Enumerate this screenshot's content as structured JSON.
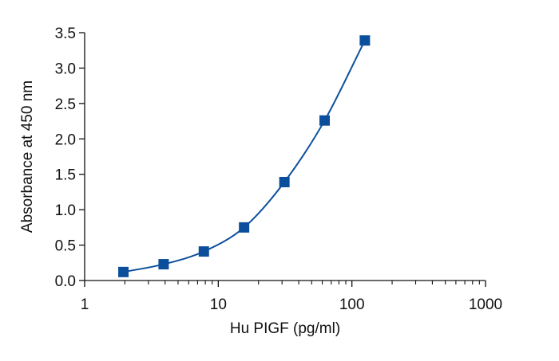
{
  "chart_data": {
    "type": "scatter",
    "xlabel": "Hu PIGF (pg/ml)",
    "ylabel": "Absorbance at 450 nm",
    "x_scale": "log",
    "xlim": [
      1,
      1000
    ],
    "ylim": [
      0,
      3.5
    ],
    "x_ticks": [
      1,
      10,
      100,
      1000
    ],
    "x_tick_labels": [
      "1",
      "10",
      "100",
      "1000"
    ],
    "y_ticks": [
      0,
      0.5,
      1.0,
      1.5,
      2.0,
      2.5,
      3.0,
      3.5
    ],
    "y_tick_labels": [
      "0.0",
      "0.5",
      "1.0",
      "1.5",
      "2.0",
      "2.5",
      "3.0",
      "3.5"
    ],
    "grid": false,
    "legend": "none",
    "fit_curve": true,
    "series": [
      {
        "marker": "square",
        "color": "#0B4F9C",
        "x": [
          1.95,
          3.9,
          7.8,
          15.6,
          31.25,
          62.5,
          125
        ],
        "y": [
          0.12,
          0.23,
          0.41,
          0.75,
          1.39,
          2.26,
          3.39
        ]
      }
    ]
  }
}
